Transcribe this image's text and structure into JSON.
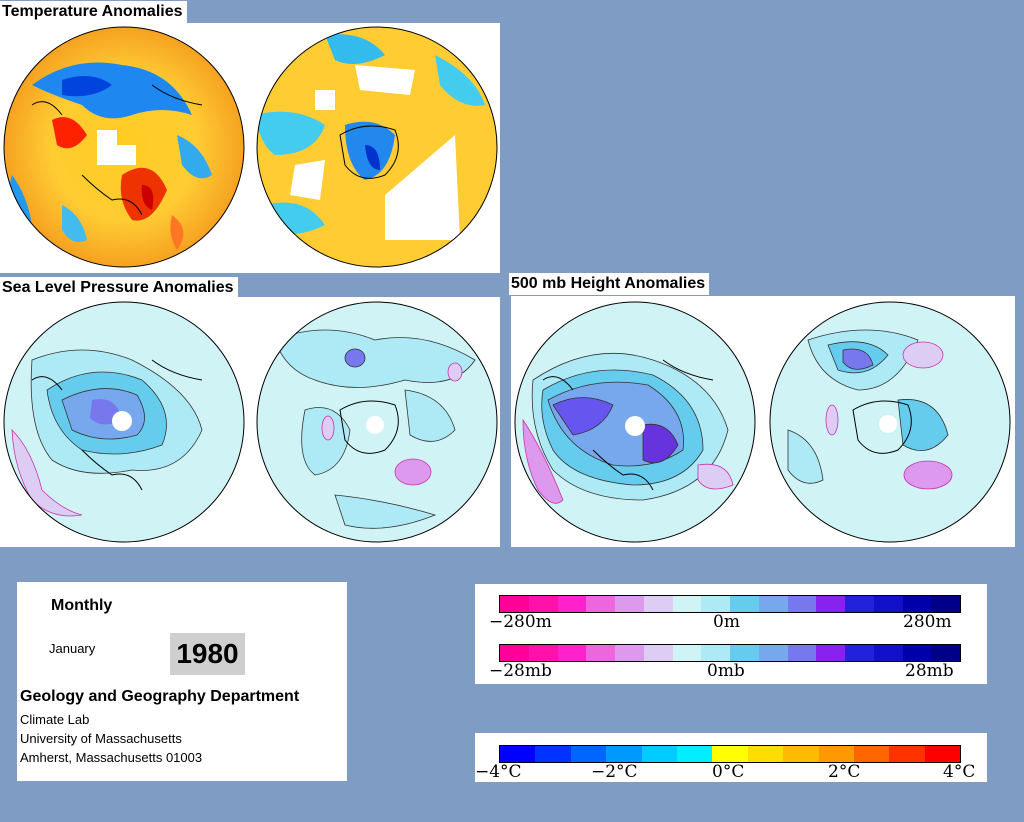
{
  "titles": {
    "temperature": "Temperature Anomalies",
    "slp": "Sea Level Pressure Anomalies",
    "height500": "500 mb Height Anomalies"
  },
  "info": {
    "frequency": "Monthly",
    "month": "January",
    "year": "1980",
    "department": "Geology and Geography Department",
    "lab": "Climate Lab",
    "university": "University of Massachusetts",
    "address": "Amherst, Massachusetts 01003"
  },
  "legends": {
    "height": {
      "left": "−280m",
      "center": "0m",
      "right": "280m"
    },
    "pressure": {
      "left": "−28mb",
      "center": "0mb",
      "right": "28mb"
    },
    "temperature": {
      "t1": "−4°C",
      "t2": "−2°C",
      "t3": "0°C",
      "t4": "2°C",
      "t5": "4°C"
    }
  },
  "colors": {
    "background": "#7f9cc5",
    "anomaly_scale": [
      "#ff0099",
      "#ff11aa",
      "#ff22cc",
      "#ee66dd",
      "#dd99ee",
      "#ddccf4",
      "#d0f4f6",
      "#aeeaf6",
      "#66ccee",
      "#77a8ee",
      "#7777ee",
      "#8822ee",
      "#2222dd",
      "#1111cc",
      "#0000aa",
      "#000088"
    ],
    "temperature_scale": [
      "#0000ff",
      "#0033ff",
      "#0066ff",
      "#0099ff",
      "#00ccff",
      "#00eeff",
      "#ffff00",
      "#ffdd00",
      "#ffbb00",
      "#ff9900",
      "#ff6600",
      "#ff3300",
      "#ff0000"
    ]
  }
}
